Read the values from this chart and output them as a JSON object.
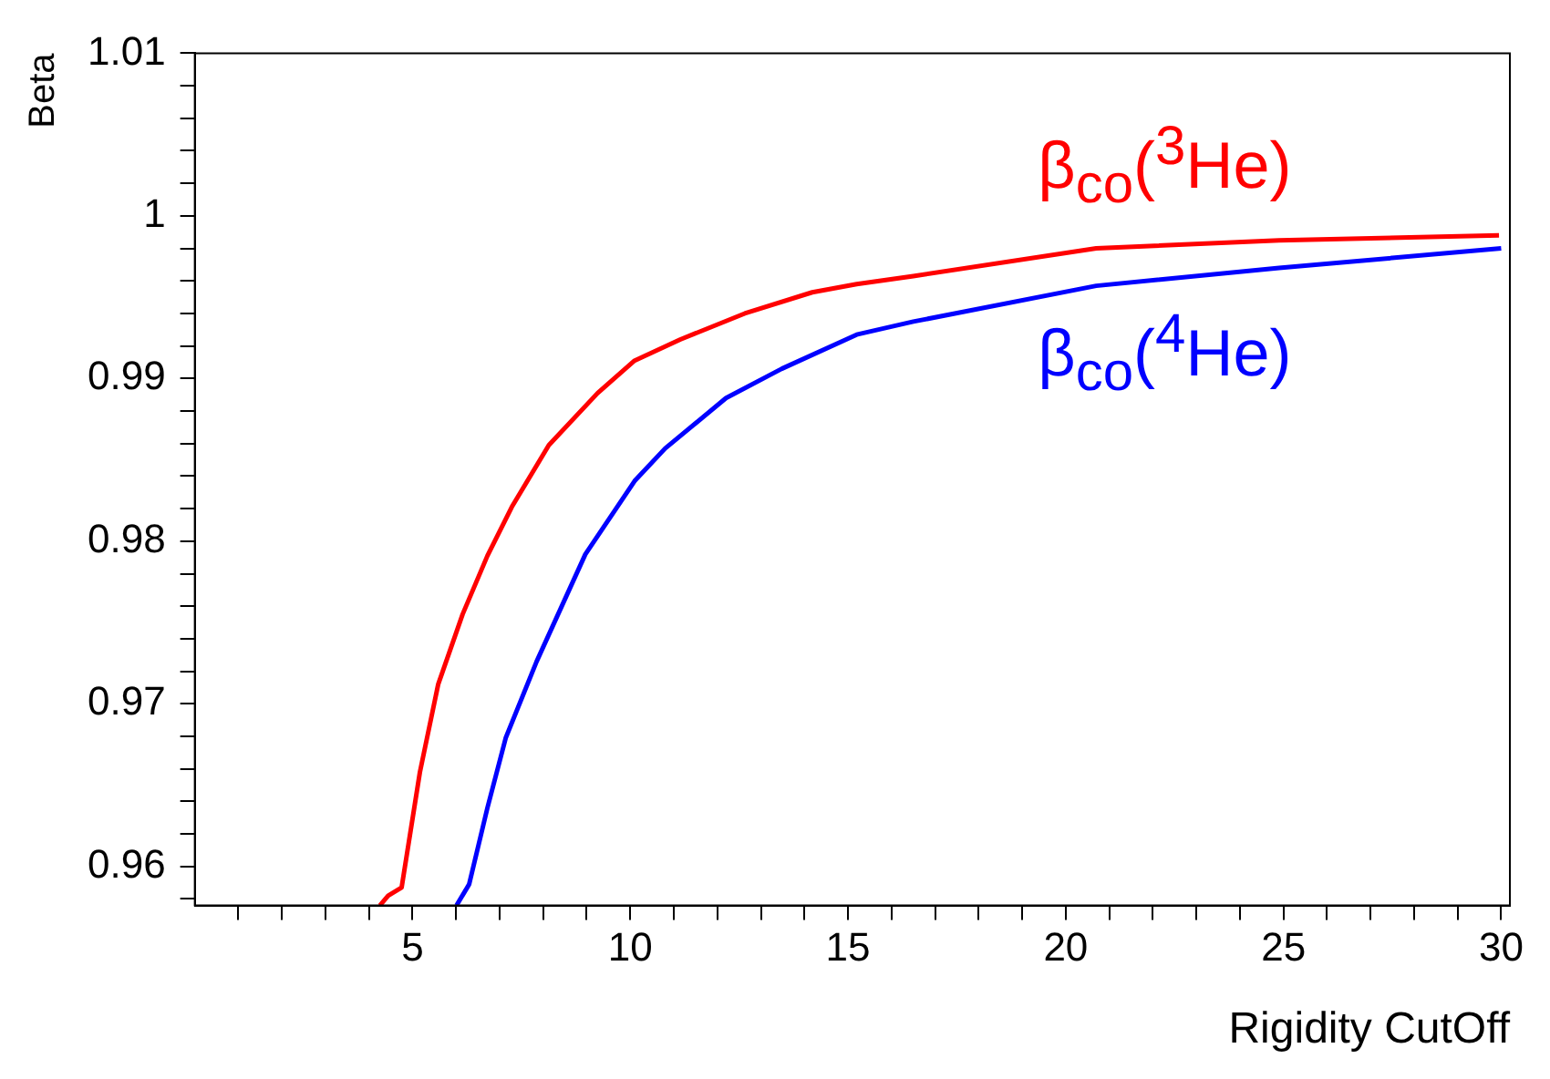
{
  "chart_data": {
    "type": "line",
    "xlabel": "Rigidity CutOff",
    "ylabel": "Beta",
    "xlim": [
      0,
      30.2
    ],
    "ylim": [
      0.9576,
      1.01
    ],
    "xticks": [
      {
        "value": 1,
        "label": null
      },
      {
        "value": 2,
        "label": null
      },
      {
        "value": 3,
        "label": null
      },
      {
        "value": 4,
        "label": null
      },
      5,
      {
        "value": 6,
        "label": null
      },
      {
        "value": 7,
        "label": null
      },
      {
        "value": 8,
        "label": null
      },
      {
        "value": 9,
        "label": null
      },
      10,
      {
        "value": 11,
        "label": null
      },
      {
        "value": 12,
        "label": null
      },
      {
        "value": 13,
        "label": null
      },
      {
        "value": 14,
        "label": null
      },
      15,
      {
        "value": 16,
        "label": null
      },
      {
        "value": 17,
        "label": null
      },
      {
        "value": 18,
        "label": null
      },
      {
        "value": 19,
        "label": null
      },
      20,
      {
        "value": 21,
        "label": null
      },
      {
        "value": 22,
        "label": null
      },
      {
        "value": 23,
        "label": null
      },
      {
        "value": 24,
        "label": null
      },
      25,
      {
        "value": 26,
        "label": null
      },
      {
        "value": 27,
        "label": null
      },
      {
        "value": 28,
        "label": null
      },
      {
        "value": 29,
        "label": null
      },
      30
    ],
    "yticks": [
      {
        "value": 0.958,
        "label": null
      },
      0.96,
      {
        "value": 0.962,
        "label": null
      },
      {
        "value": 0.964,
        "label": null
      },
      {
        "value": 0.966,
        "label": null
      },
      {
        "value": 0.968,
        "label": null
      },
      0.97,
      {
        "value": 0.972,
        "label": null
      },
      {
        "value": 0.974,
        "label": null
      },
      {
        "value": 0.976,
        "label": null
      },
      {
        "value": 0.978,
        "label": null
      },
      0.98,
      {
        "value": 0.982,
        "label": null
      },
      {
        "value": 0.984,
        "label": null
      },
      {
        "value": 0.986,
        "label": null
      },
      {
        "value": 0.988,
        "label": null
      },
      0.99,
      {
        "value": 0.992,
        "label": null
      },
      {
        "value": 0.994,
        "label": null
      },
      {
        "value": 0.996,
        "label": null
      },
      {
        "value": 0.998,
        "label": null
      },
      {
        "value": 1,
        "label": "1"
      },
      {
        "value": 1.002,
        "label": null
      },
      {
        "value": 1.004,
        "label": null
      },
      {
        "value": 1.006,
        "label": null
      },
      {
        "value": 1.008,
        "label": null
      },
      1.01
    ],
    "grid": false,
    "legend": false,
    "marker": "none",
    "line_style": "solid",
    "series": [
      {
        "name": "β$_{co}$($^{3}$He)",
        "color": "#ff0000",
        "x": [
          4.25,
          4.44,
          4.75,
          5.17,
          5.59,
          6.15,
          6.72,
          7.28,
          8.13,
          9.25,
          10.1,
          11.15,
          12.63,
          14.18,
          15.2,
          16.5,
          20.7,
          24.9,
          29.95
        ],
        "values": [
          0.9576,
          0.9582,
          0.9587,
          0.9658,
          0.9712,
          0.9755,
          0.9791,
          0.9821,
          0.9859,
          0.9891,
          0.9911,
          0.9924,
          0.994,
          0.9953,
          0.9958,
          0.9963,
          0.998,
          0.9985,
          0.9988
        ]
      },
      {
        "name": "β$_{co}$($^{4}$He)",
        "color": "#0000ff",
        "x": [
          6.01,
          6.3,
          6.72,
          7.14,
          7.85,
          8.97,
          10.1,
          10.8,
          12.2,
          13.48,
          15.2,
          16.5,
          20.7,
          24.9,
          30.0
        ],
        "values": [
          0.9576,
          0.9589,
          0.9636,
          0.9679,
          0.9726,
          0.9792,
          0.9837,
          0.9857,
          0.9888,
          0.9906,
          0.9927,
          0.9935,
          0.9957,
          0.9968,
          0.998
        ]
      }
    ]
  }
}
